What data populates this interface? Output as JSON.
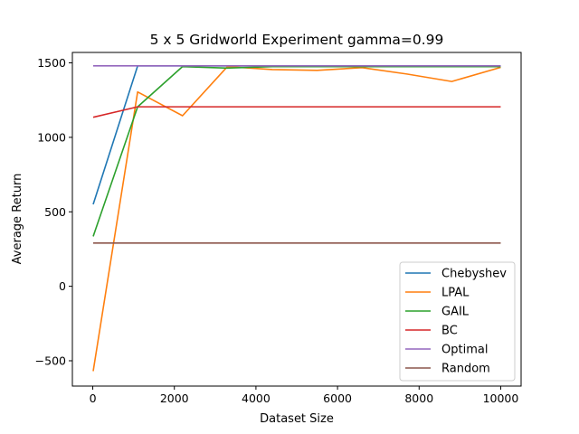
{
  "chart_data": {
    "type": "line",
    "title": "5 x 5 Gridworld Experiment gamma=0.99",
    "xlabel": "Dataset Size",
    "ylabel": "Average Return",
    "xlim": [
      -500,
      10500
    ],
    "ylim": [
      -670,
      1570
    ],
    "xticks": [
      0,
      2000,
      4000,
      6000,
      8000,
      10000
    ],
    "xtick_labels": [
      "0",
      "2000",
      "4000",
      "6000",
      "8000",
      "10000"
    ],
    "yticks": [
      -500,
      0,
      500,
      1000,
      1500
    ],
    "ytick_labels": [
      "−500",
      "0",
      "500",
      "1000",
      "1500"
    ],
    "grid": false,
    "legend_position": "lower right",
    "series": [
      {
        "name": "Chebyshev",
        "color": "#1f77b4",
        "x": [
          10,
          1100,
          2200,
          3300,
          4400,
          5500,
          6600,
          7700,
          8800,
          10000
        ],
        "y": [
          550,
          1480,
          1480,
          1480,
          1480,
          1480,
          1480,
          1480,
          1480,
          1480
        ]
      },
      {
        "name": "LPAL",
        "color": "#ff7f0e",
        "x": [
          10,
          1100,
          2200,
          3300,
          4400,
          5500,
          6600,
          7700,
          8800,
          10000
        ],
        "y": [
          -570,
          1305,
          1145,
          1475,
          1455,
          1450,
          1468,
          1425,
          1375,
          1470
        ]
      },
      {
        "name": "GAIL",
        "color": "#2ca02c",
        "x": [
          10,
          1100,
          2200,
          3300,
          4400,
          5500,
          6600,
          7700,
          8800,
          10000
        ],
        "y": [
          335,
          1205,
          1475,
          1465,
          1475,
          1475,
          1475,
          1475,
          1475,
          1475
        ]
      },
      {
        "name": "BC",
        "color": "#d62728",
        "x": [
          10,
          1100,
          2200,
          3300,
          4400,
          5500,
          6600,
          7700,
          8800,
          10000
        ],
        "y": [
          1135,
          1205,
          1205,
          1205,
          1205,
          1205,
          1205,
          1205,
          1205,
          1205
        ]
      },
      {
        "name": "Optimal",
        "color": "#9467bd",
        "x": [
          10,
          1100,
          2200,
          3300,
          4400,
          5500,
          6600,
          7700,
          8800,
          10000
        ],
        "y": [
          1480,
          1480,
          1480,
          1480,
          1480,
          1480,
          1480,
          1480,
          1480,
          1480
        ]
      },
      {
        "name": "Random",
        "color": "#8c564b",
        "x": [
          10,
          1100,
          2200,
          3300,
          4400,
          5500,
          6600,
          7700,
          8800,
          10000
        ],
        "y": [
          290,
          290,
          290,
          290,
          290,
          290,
          290,
          290,
          290,
          290
        ]
      }
    ]
  }
}
